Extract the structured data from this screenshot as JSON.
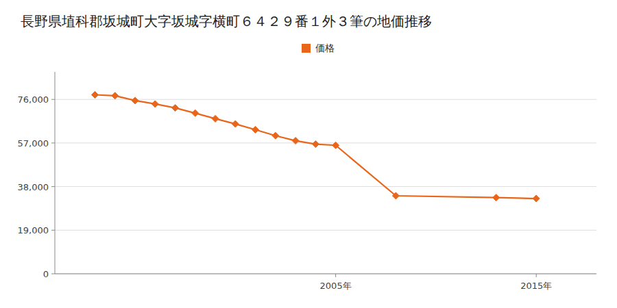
{
  "chart_data": {
    "type": "line",
    "title": "長野県埴科郡坂城町大字坂城字横町６４２９番１外３筆の地価推移",
    "x": [
      1993,
      1994,
      1995,
      1996,
      1997,
      1998,
      1999,
      2000,
      2001,
      2002,
      2003,
      2004,
      2005,
      2008,
      2013,
      2015
    ],
    "series": [
      {
        "name": "価格",
        "color": "#E8651A",
        "marker": "diamond",
        "values": [
          78000,
          77600,
          75500,
          74000,
          72300,
          70000,
          67600,
          65300,
          62800,
          60200,
          58000,
          56500,
          56000,
          34000,
          33200,
          32800
        ]
      }
    ],
    "xlim": [
      1991,
      2018
    ],
    "xticks": [
      {
        "value": 2005,
        "label": "2005年"
      },
      {
        "value": 2015,
        "label": "2015年"
      }
    ],
    "ylim": [
      0,
      88000
    ],
    "yticks": [
      0,
      {
        "value": 19000,
        "label": "19,000"
      },
      {
        "value": 38000,
        "label": "38,000"
      },
      {
        "value": 57000,
        "label": "57,000"
      },
      {
        "value": 76000,
        "label": "76,000"
      }
    ],
    "grid": true,
    "legend": "top"
  }
}
